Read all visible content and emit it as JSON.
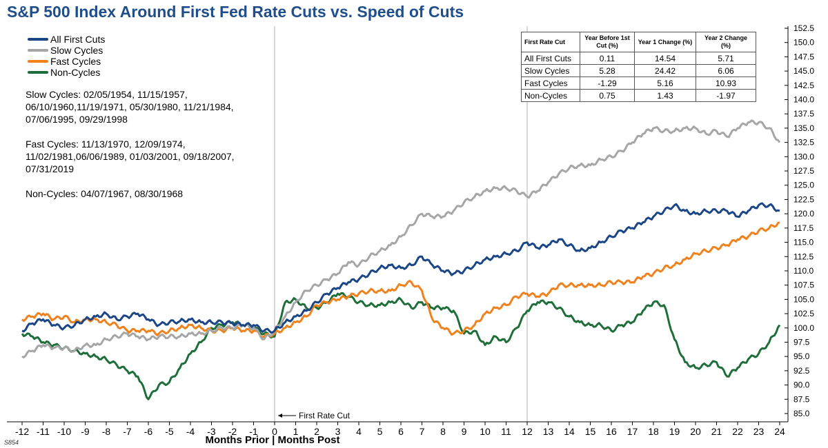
{
  "title": "S&P 500 Index Around First Fed Rate Cuts vs. Speed of Cuts",
  "footer_code": "S854",
  "legend": [
    {
      "label": "All First Cuts",
      "color": "#1a4587"
    },
    {
      "label": "Slow Cycles",
      "color": "#a6a6a6"
    },
    {
      "label": "Fast Cycles",
      "color": "#f0821e"
    },
    {
      "label": "Non-Cycles",
      "color": "#1e6e3a"
    }
  ],
  "notes": [
    "Slow Cycles: 02/05/1954, 11/15/1957, 06/10/1960,11/19/1971, 05/30/1980, 11/21/1984, 07/06/1995, 09/29/1998",
    "Fast Cycles: 11/13/1970, 12/09/1974, 11/02/1981,06/06/1989, 01/03/2001, 09/18/2007, 07/31/2019",
    "Non-Cycles: 04/07/1967, 08/30/1968"
  ],
  "table": {
    "headers": [
      "First Rate Cut",
      "Year Before 1st Cut (%)",
      "Year 1 Change (%)",
      "Year 2 Change (%)"
    ],
    "rows": [
      {
        "name": "All First Cuts",
        "values": [
          "0.11",
          "14.54",
          "5.71"
        ]
      },
      {
        "name": "Slow Cycles",
        "values": [
          "5.28",
          "24.42",
          "6.06"
        ]
      },
      {
        "name": "Fast Cycles",
        "values": [
          "-1.29",
          "5.16",
          "10.93"
        ]
      },
      {
        "name": "Non-Cycles",
        "values": [
          "0.75",
          "1.43",
          "-1.97"
        ]
      }
    ]
  },
  "annotation": "First Rate Cut",
  "chart_data": {
    "type": "line",
    "title": "S&P 500 Index Around First Fed Rate Cuts vs. Speed of Cuts",
    "xlabel": "Months Prior | Months Post",
    "ylabel": "",
    "xlim": [
      -12,
      24
    ],
    "ylim": [
      85,
      152.5
    ],
    "x_ticks": [
      "-12",
      "-11",
      "-10",
      "-9",
      "-8",
      "-7",
      "-6",
      "-5",
      "-4",
      "-3",
      "-2",
      "-1",
      "0",
      "1",
      "2",
      "3",
      "4",
      "5",
      "6",
      "7",
      "8",
      "9",
      "10",
      "11",
      "12",
      "13",
      "14",
      "15",
      "16",
      "17",
      "18",
      "19",
      "20",
      "21",
      "22",
      "23",
      "24"
    ],
    "y_ticks": [
      "85.0",
      "87.5",
      "90.0",
      "92.5",
      "95.0",
      "97.5",
      "100.0",
      "102.5",
      "105.0",
      "107.5",
      "110.0",
      "112.5",
      "115.0",
      "117.5",
      "120.0",
      "122.5",
      "125.0",
      "127.5",
      "130.0",
      "132.5",
      "135.0",
      "137.5",
      "140.0",
      "142.5",
      "145.0",
      "147.5",
      "150.0",
      "152.5"
    ],
    "vertical_lines_x": [
      0,
      12
    ],
    "grid": false,
    "x": [
      -12,
      -11.5,
      -11,
      -10.5,
      -10,
      -9.5,
      -9,
      -8.5,
      -8,
      -7.5,
      -7,
      -6.5,
      -6,
      -5.5,
      -5,
      -4.5,
      -4,
      -3.5,
      -3,
      -2.5,
      -2,
      -1.5,
      -1,
      -0.5,
      0,
      0.5,
      1,
      1.5,
      2,
      2.5,
      3,
      3.5,
      4,
      4.5,
      5,
      5.5,
      6,
      6.5,
      7,
      7.5,
      8,
      8.5,
      9,
      9.5,
      10,
      10.5,
      11,
      11.5,
      12,
      12.5,
      13,
      13.5,
      14,
      14.5,
      15,
      15.5,
      16,
      16.5,
      17,
      17.5,
      18,
      18.5,
      19,
      19.5,
      20,
      20.5,
      21,
      21.5,
      22,
      22.5,
      23,
      23.5,
      24
    ],
    "series": [
      {
        "name": "All First Cuts",
        "color": "#1a4587",
        "values": [
          99.5,
          100.8,
          101.5,
          100.5,
          100,
          100.5,
          101.5,
          102,
          102.5,
          101.5,
          102,
          102.5,
          101.5,
          100.5,
          101,
          101.2,
          101.5,
          101,
          101,
          101,
          100.8,
          100.5,
          100.5,
          99.5,
          99.5,
          101,
          102,
          103,
          104.5,
          106,
          107,
          108,
          108.5,
          109.5,
          110.5,
          111,
          110.5,
          111,
          112.5,
          111,
          110,
          109.5,
          110,
          111,
          112,
          112.5,
          113,
          113.5,
          115,
          114,
          114.5,
          115.5,
          114.5,
          113.5,
          114,
          115,
          116,
          117,
          117.5,
          118.5,
          119.5,
          120.5,
          121.5,
          120.5,
          120,
          120.5,
          120.5,
          120.5,
          119.5,
          120.5,
          121.5,
          121.5,
          120.5
        ]
      },
      {
        "name": "Slow Cycles",
        "color": "#a6a6a6",
        "values": [
          95,
          96,
          97,
          96.5,
          96.5,
          96,
          97,
          97,
          98,
          98.5,
          99,
          98.5,
          98,
          98.5,
          98.5,
          98.5,
          99,
          99,
          99.5,
          100,
          100,
          100.5,
          100,
          98,
          99.5,
          102,
          104.5,
          106.5,
          107.5,
          108.5,
          109.5,
          111.5,
          111,
          112.5,
          113.5,
          114.5,
          116,
          118,
          120,
          119.5,
          119.5,
          120.5,
          122,
          123,
          124,
          124.5,
          124.5,
          124,
          123,
          124,
          125.5,
          127,
          128,
          128.5,
          128.5,
          129.5,
          130,
          131,
          132.5,
          134,
          135,
          134.5,
          134.5,
          135,
          135,
          134,
          134.5,
          133.5,
          135,
          136,
          136,
          135,
          132.5
        ]
      },
      {
        "name": "Fast Cycles",
        "color": "#f0821e",
        "values": [
          101.5,
          102,
          102.5,
          101.5,
          102,
          101,
          101.5,
          101.5,
          101,
          100.5,
          99.5,
          99.5,
          99.5,
          99,
          99.5,
          100,
          100.5,
          100,
          99.5,
          99.5,
          100,
          99.5,
          99.5,
          98.5,
          99,
          100,
          101,
          102,
          104,
          104.5,
          105,
          105.5,
          106,
          106.5,
          106.5,
          106.5,
          107.5,
          108,
          106.5,
          101.5,
          100,
          99,
          99.5,
          100.5,
          102.5,
          103.5,
          104,
          105.5,
          106,
          105.5,
          106,
          107.5,
          107.5,
          107.5,
          107.5,
          107.5,
          108,
          108,
          108,
          109,
          109.5,
          110.5,
          111,
          112,
          113,
          113.5,
          114,
          114.5,
          115.5,
          116,
          117,
          117.5,
          118.5
        ]
      },
      {
        "name": "Non-Cycles",
        "color": "#1e6e3a",
        "values": [
          99,
          98.5,
          97.5,
          97,
          96.5,
          96,
          95.5,
          95,
          94.5,
          93.5,
          92.5,
          91.5,
          87.5,
          90,
          90.5,
          93,
          95.5,
          97.5,
          100,
          100.5,
          101,
          100.5,
          100,
          99,
          98.5,
          104.5,
          105,
          103.5,
          103.5,
          104.5,
          106,
          105.5,
          104.5,
          104,
          104,
          104.5,
          105,
          103.5,
          104.5,
          103.5,
          103.5,
          103,
          99,
          99.5,
          97,
          98.5,
          97.5,
          100,
          103,
          104.5,
          104.5,
          103.5,
          102,
          101,
          100.5,
          100.5,
          99.5,
          100.5,
          101,
          103,
          104.5,
          104,
          98,
          94,
          93,
          93.5,
          94,
          91.5,
          93,
          94.5,
          95.5,
          97.5,
          100.5
        ]
      }
    ]
  }
}
